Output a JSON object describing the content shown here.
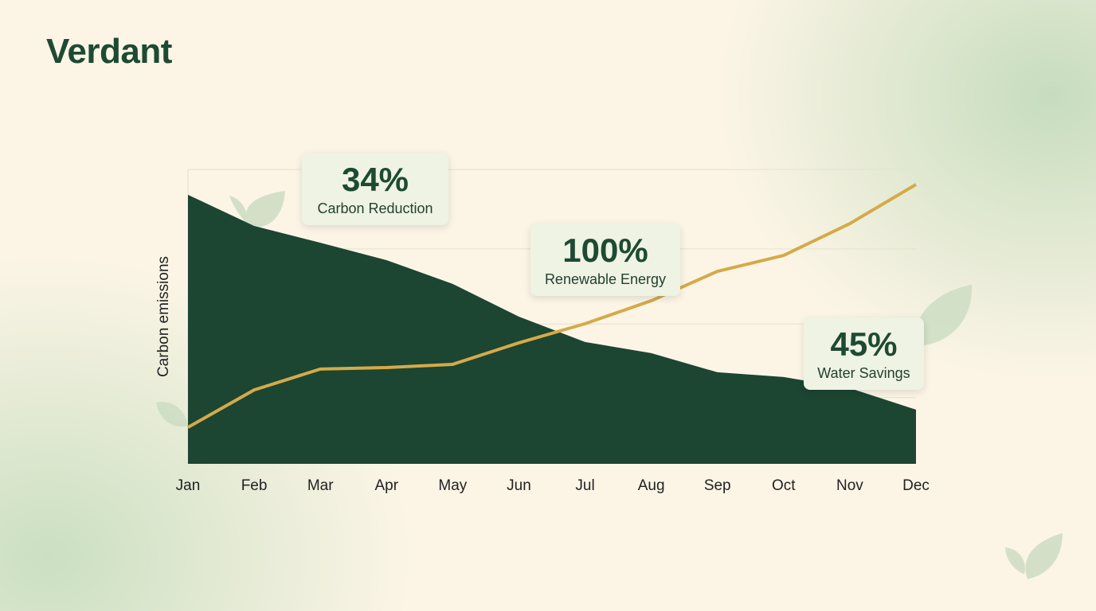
{
  "brand": "Verdant",
  "chart_data": {
    "type": "area-line",
    "y_label": "Carbon emissions",
    "categories": [
      "Jan",
      "Feb",
      "Mar",
      "Apr",
      "May",
      "Jun",
      "Jul",
      "Aug",
      "Sep",
      "Oct",
      "Nov",
      "Dec"
    ],
    "series": [
      {
        "kind": "area",
        "color": "#1c4532",
        "values": [
          91.4,
          80.8,
          75.1,
          69.2,
          61.1,
          50,
          41.4,
          37.6,
          31.1,
          29.5,
          25.7,
          18.4
        ]
      },
      {
        "kind": "line",
        "color": "#d4aa4a",
        "values": [
          12.4,
          25.1,
          32.2,
          32.7,
          33.8,
          41.1,
          47.6,
          55.4,
          65.4,
          70.8,
          81.6,
          94.9
        ]
      }
    ],
    "ylim": [
      0,
      100
    ],
    "yticks": [
      22.5,
      47.5,
      73,
      100
    ],
    "grid": true
  },
  "stats": [
    {
      "value": "34%",
      "label": "Carbon Reduction"
    },
    {
      "value": "100%",
      "label": "Renewable Energy"
    },
    {
      "value": "45%",
      "label": "Water Savings"
    }
  ]
}
